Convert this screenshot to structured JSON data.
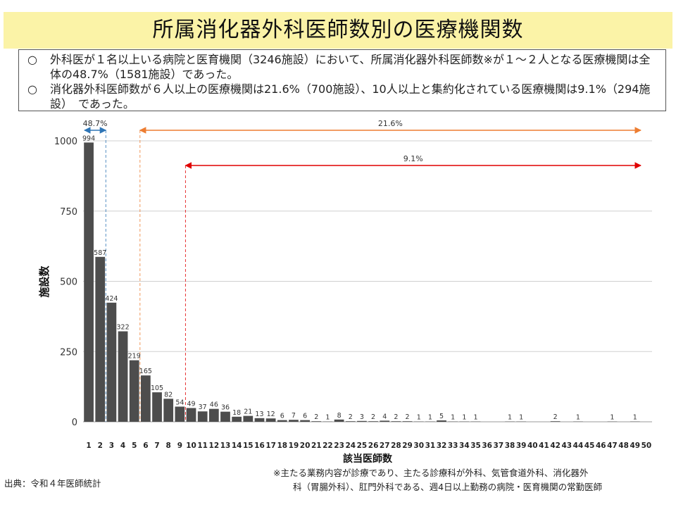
{
  "title": "所属消化器外科医師数別の医療機関数",
  "summary": {
    "bullets": [
      {
        "mark": "○",
        "text": "外科医が１名以上いる病院と医育機関（3246施設）において、所属消化器外科医師数※が１～２人となる医療機関は全体の48.7%（1581施設）であった。"
      },
      {
        "mark": "○",
        "text": "消化器外科医師数が６人以上の医療機関は21.6%（700施設）、10人以上と集約化されている医療機関は9.1%（294施設）　であった。"
      }
    ]
  },
  "chart_data": {
    "type": "bar",
    "xlabel": "該当医師数",
    "ylabel": "施設数",
    "ylim": [
      0,
      1000
    ],
    "yticks": [
      0,
      250,
      500,
      750,
      1000
    ],
    "categories": [
      1,
      2,
      3,
      4,
      5,
      6,
      7,
      8,
      9,
      10,
      11,
      12,
      13,
      14,
      15,
      16,
      17,
      18,
      19,
      20,
      21,
      22,
      23,
      24,
      25,
      26,
      27,
      28,
      29,
      30,
      31,
      32,
      33,
      34,
      35,
      36,
      37,
      38,
      39,
      40,
      41,
      42,
      43,
      44,
      45,
      46,
      47,
      48,
      49,
      50
    ],
    "values": [
      994,
      587,
      424,
      322,
      219,
      165,
      105,
      82,
      54,
      49,
      37,
      46,
      36,
      18,
      21,
      13,
      12,
      6,
      7,
      6,
      2,
      1,
      8,
      2,
      3,
      2,
      4,
      2,
      2,
      1,
      1,
      5,
      1,
      1,
      1,
      0,
      0,
      1,
      1,
      0,
      0,
      2,
      0,
      1,
      0,
      0,
      1,
      0,
      1,
      0
    ],
    "labels": [
      "994",
      "587",
      "424",
      "322",
      "219",
      "165",
      "105",
      "82",
      "54",
      "49",
      "37",
      "46",
      "36",
      "18",
      "21",
      "13",
      "12",
      "6",
      "7",
      "6",
      "2",
      "1",
      "8",
      "2",
      "3",
      "2",
      "4",
      "2",
      "2",
      "1",
      "1",
      "5",
      "1",
      "1",
      "1",
      "",
      "",
      "1",
      "1",
      "",
      "",
      "2",
      "",
      "1",
      "",
      "",
      "1",
      "",
      "1",
      ""
    ],
    "grid": true,
    "bar_color": "#4d4d4d",
    "annotations": [
      {
        "label": "48.7%",
        "from": 1,
        "to": 2,
        "color": "#2e75b6"
      },
      {
        "label": "21.6%",
        "from": 6,
        "to": 50,
        "color": "#ed7d31"
      },
      {
        "label": "9.1%",
        "from": 10,
        "to": 50,
        "color": "#e00000"
      }
    ]
  },
  "footer": {
    "source": "出典：令和４年医師統計",
    "note_line1": "※主たる業務内容が診療であり、主たる診療科が外科、気管食道外科、消化器外",
    "note_line2": "科（胃腸外科）、肛門外科である、週4日以上勤務の病院・医育機関の常勤医師"
  }
}
